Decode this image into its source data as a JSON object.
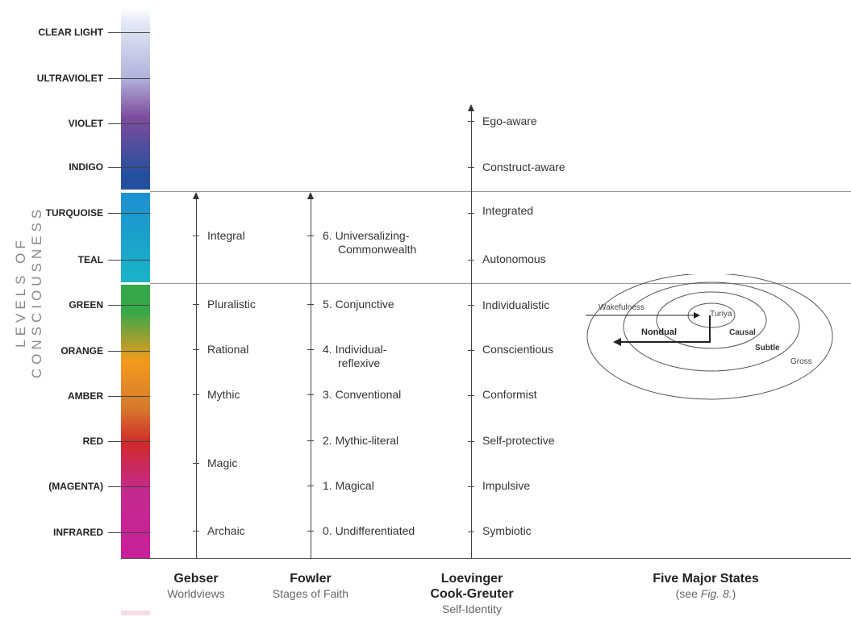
{
  "vertical_title": "LEVELS OF CONSCIOUSNESS",
  "levels": [
    {
      "label": "CLEAR LIGHT"
    },
    {
      "label": "ULTRAVIOLET"
    },
    {
      "label": "VIOLET"
    },
    {
      "label": "INDIGO"
    },
    {
      "label": "TURQUOISE"
    },
    {
      "label": "TEAL"
    },
    {
      "label": "GREEN"
    },
    {
      "label": "ORANGE"
    },
    {
      "label": "AMBER"
    },
    {
      "label": "RED"
    },
    {
      "label": "(MAGENTA)"
    },
    {
      "label": "INFRARED"
    }
  ],
  "colors": {
    "clear_light": "#e4e8f6",
    "ultraviolet": "#b2b4dc",
    "violet": "#7f4c9e",
    "indigo": "#244f9e",
    "turquoise": "#1c8fd0",
    "teal": "#1ab4c8",
    "green": "#37a84a",
    "orange": "#f39a1c",
    "amber": "#d67a2c",
    "red": "#cf2a2a",
    "magenta": "#c42a8e",
    "infrared": "#c81f9a"
  },
  "gebser": {
    "heading": "Gebser",
    "subheading": "Worldviews",
    "stages": [
      "Integral",
      "Pluralistic",
      "Rational",
      "Mythic",
      "Magic",
      "Archaic"
    ]
  },
  "fowler": {
    "heading": "Fowler",
    "subheading": "Stages of Faith",
    "stages": [
      {
        "line1": "6. Universalizing-",
        "line2": "Commonwealth"
      },
      {
        "line1": "5. Conjunctive",
        "line2": ""
      },
      {
        "line1": "4. Individual-",
        "line2": "reflexive"
      },
      {
        "line1": "3. Conventional",
        "line2": ""
      },
      {
        "line1": "2. Mythic-literal",
        "line2": ""
      },
      {
        "line1": "1. Magical",
        "line2": ""
      },
      {
        "line1": "0. Undifferentiated",
        "line2": ""
      }
    ]
  },
  "loevinger": {
    "heading1": "Loevinger",
    "heading2": "Cook-Greuter",
    "subheading": "Self-Identity",
    "stages": [
      "Ego-aware",
      "Construct-aware",
      "Integrated",
      "Autonomous",
      "Individualistic",
      "Conscientious",
      "Conformist",
      "Self-protective",
      "Impulsive",
      "Symbiotic"
    ]
  },
  "states": {
    "heading": "Five Major States",
    "sub_prefix": "(see ",
    "sub_fig": "Fig. 8.",
    "sub_suffix": ")",
    "labels": {
      "wakefulness": "Wakefulness",
      "turiya": "Turiya",
      "nondual": "Nondual",
      "causal": "Causal",
      "subtle": "Subtle",
      "gross": "Gross"
    }
  }
}
